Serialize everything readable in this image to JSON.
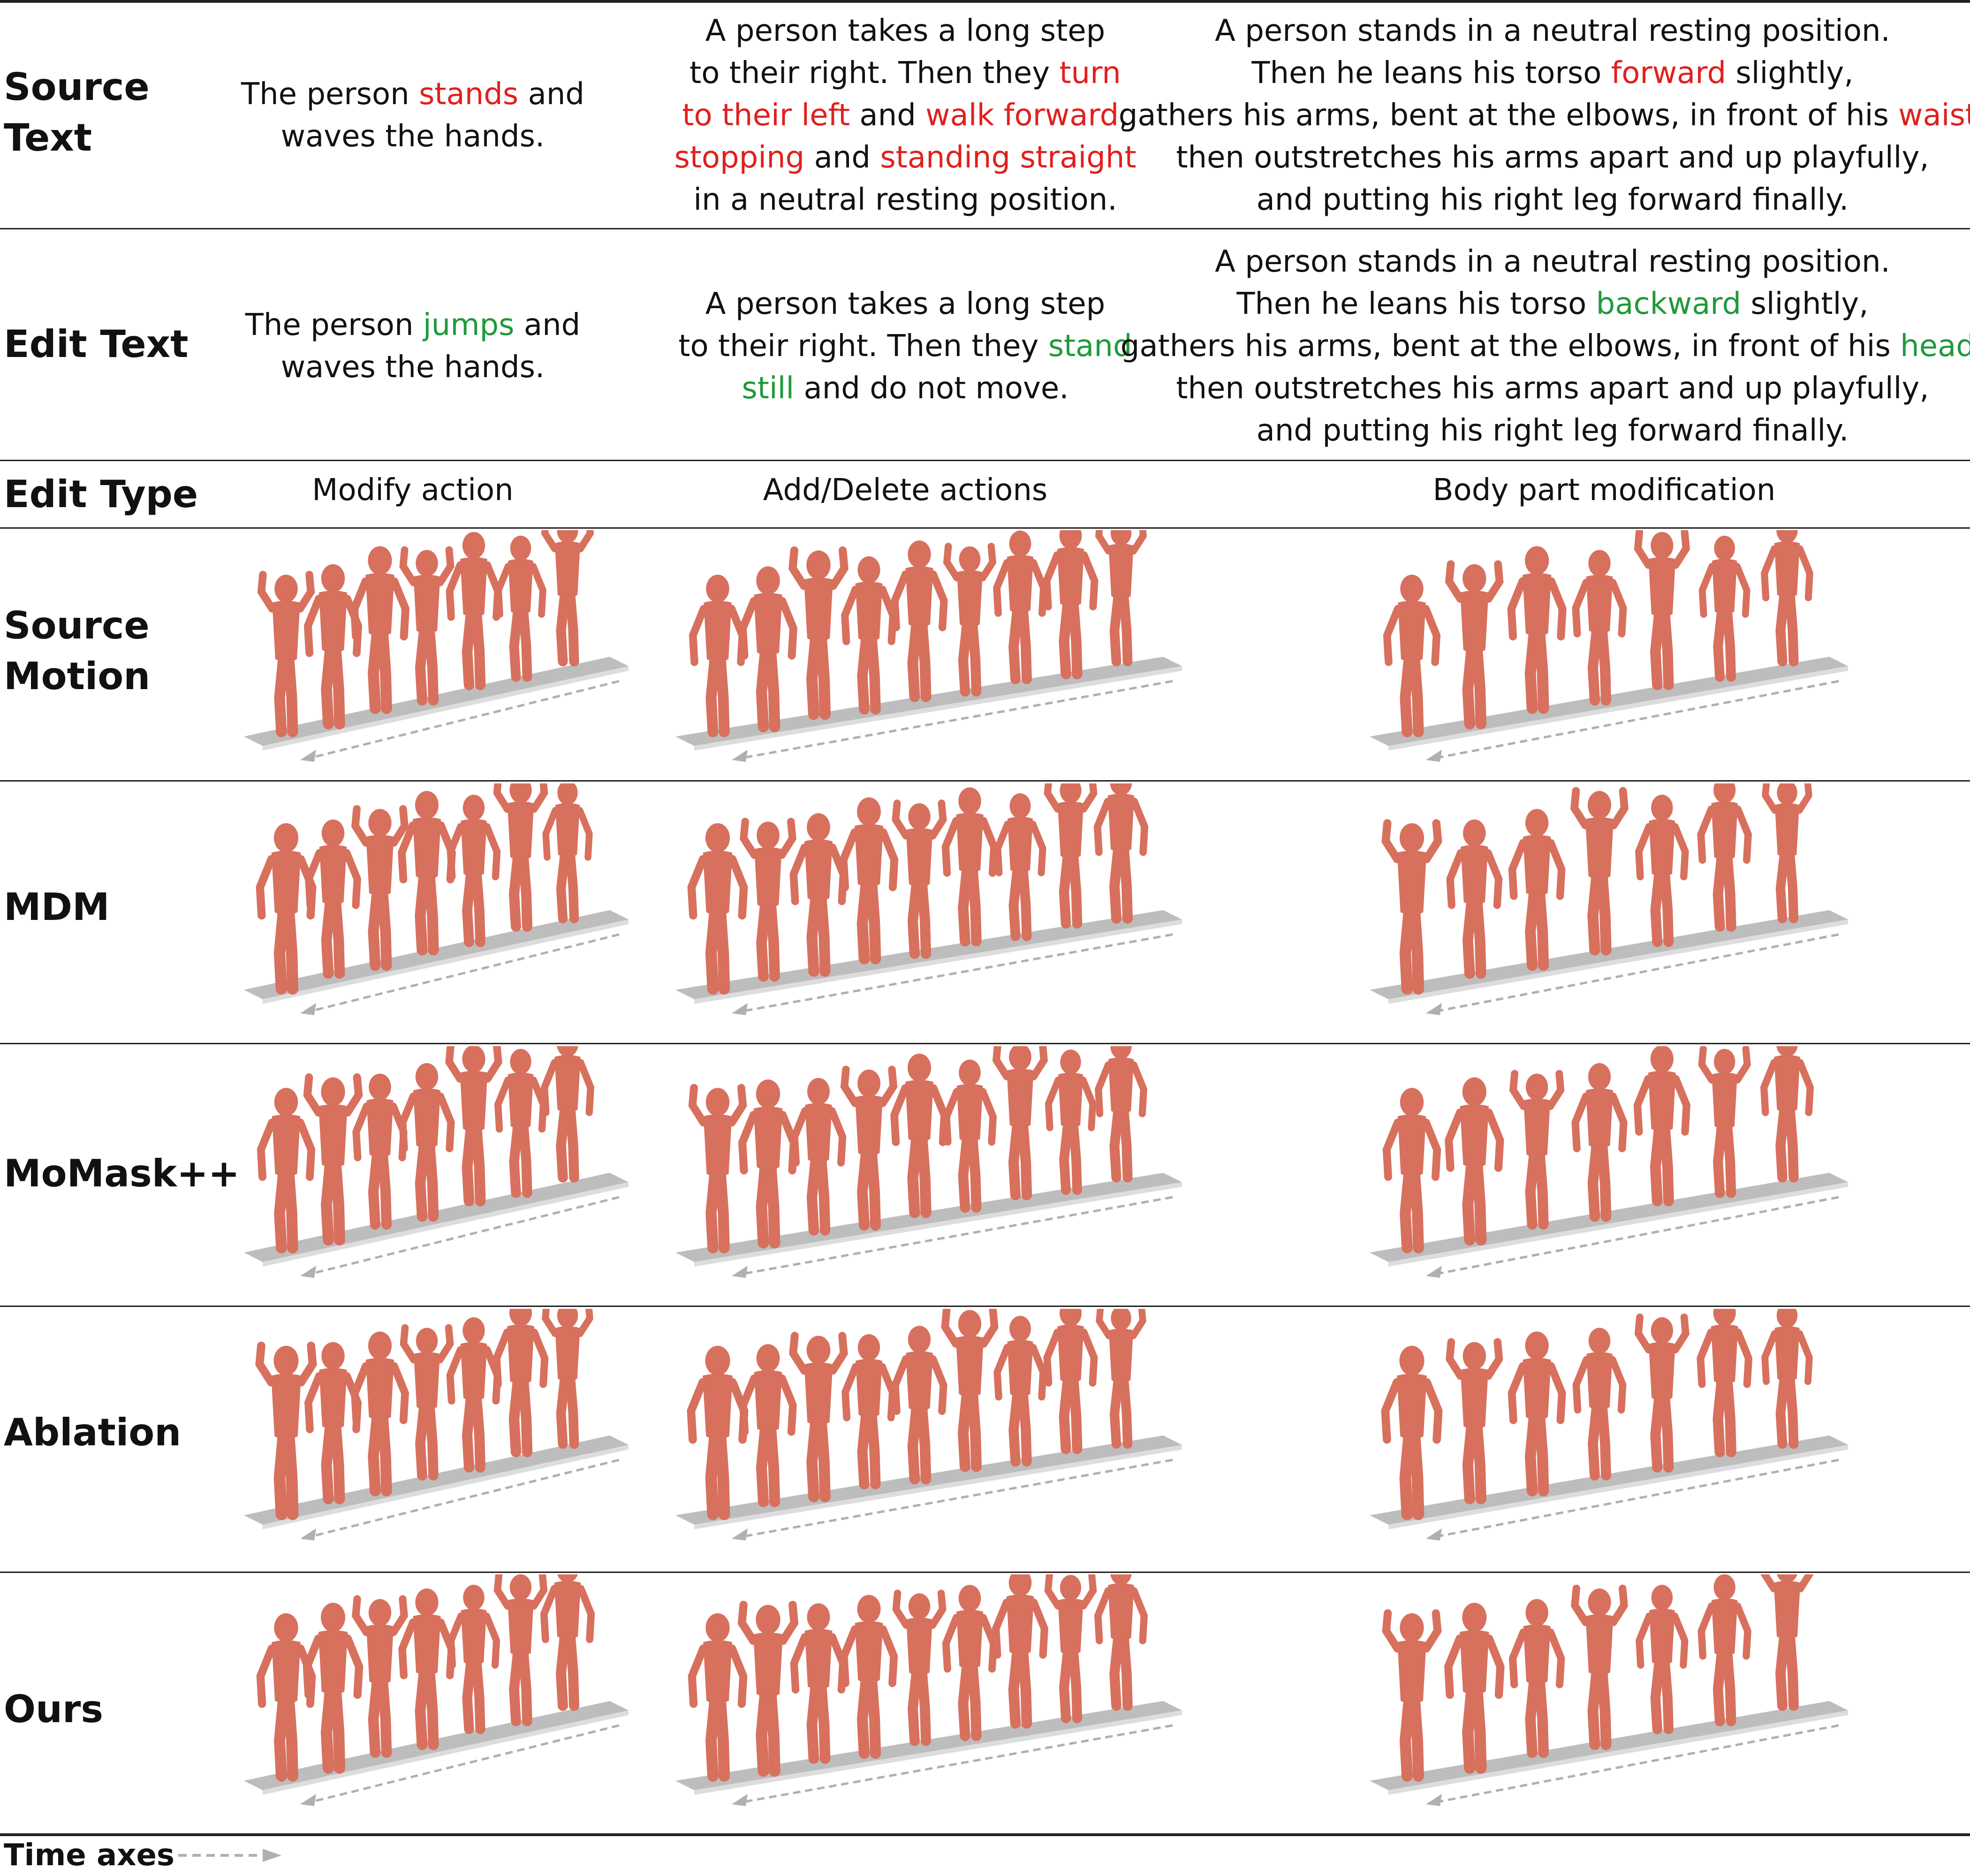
{
  "rows": {
    "source_text_label_line1": "Source",
    "source_text_label_line2": "Text",
    "edit_text_label": "Edit Text",
    "edit_type_label": "Edit Type",
    "source_motion_label_line1": "Source",
    "source_motion_label_line2": "Motion",
    "mdm_label": "MDM",
    "momask_label": "MoMask++",
    "ablation_label": "Ablation",
    "ours_label": "Ours"
  },
  "source_text": {
    "col1": {
      "l1a": "The person ",
      "l1b": "stands",
      "l1c": " and",
      "l2": "waves the hands."
    },
    "col2": {
      "l1": "A person takes a long step",
      "l2a": "to their right. Then they ",
      "l2b": "turn",
      "l3a": "to their left",
      "l3b": " and ",
      "l3c": "walk forward",
      "l3d": ",",
      "l4a": "stopping",
      "l4b": " and ",
      "l4c": "standing straight",
      "l5": "in a neutral resting position."
    },
    "col3": {
      "l1": "A person stands in a neutral resting position.",
      "l2a": "Then he leans his torso ",
      "l2b": "forward",
      "l2c": " slightly,",
      "l3a": "gathers his arms, bent at the elbows, in front of his ",
      "l3b": "waist",
      "l3c": ",",
      "l4": "then outstretches his arms apart and up playfully,",
      "l5": "and putting his right leg forward finally."
    }
  },
  "edit_text": {
    "col1": {
      "l1a": "The person ",
      "l1b": "jumps",
      "l1c": " and",
      "l2": "waves the hands."
    },
    "col2": {
      "l1": "A person takes a long step",
      "l2a": "to their right. Then they ",
      "l2b": "stand",
      "l3a": "still",
      "l3b": " and do not move."
    },
    "col3": {
      "l1": "A person stands in a neutral resting position.",
      "l2a": "Then he leans his torso ",
      "l2b": "backward",
      "l2c": " slightly,",
      "l3a": "gathers his arms, bent at the elbows, in front of his ",
      "l3b": "head",
      "l3c": ",",
      "l4": "then outstretches his arms apart and up playfully,",
      "l5": "and putting his right leg forward finally."
    }
  },
  "edit_types": [
    "Modify action",
    "Add/Delete actions",
    "Body part modification"
  ],
  "legend": {
    "label": "Time axes"
  },
  "colors": {
    "source_highlight": "#e0201e",
    "edit_highlight": "#1f9a3a",
    "figure": "#d8705e",
    "floor": "#bdbdbd"
  }
}
